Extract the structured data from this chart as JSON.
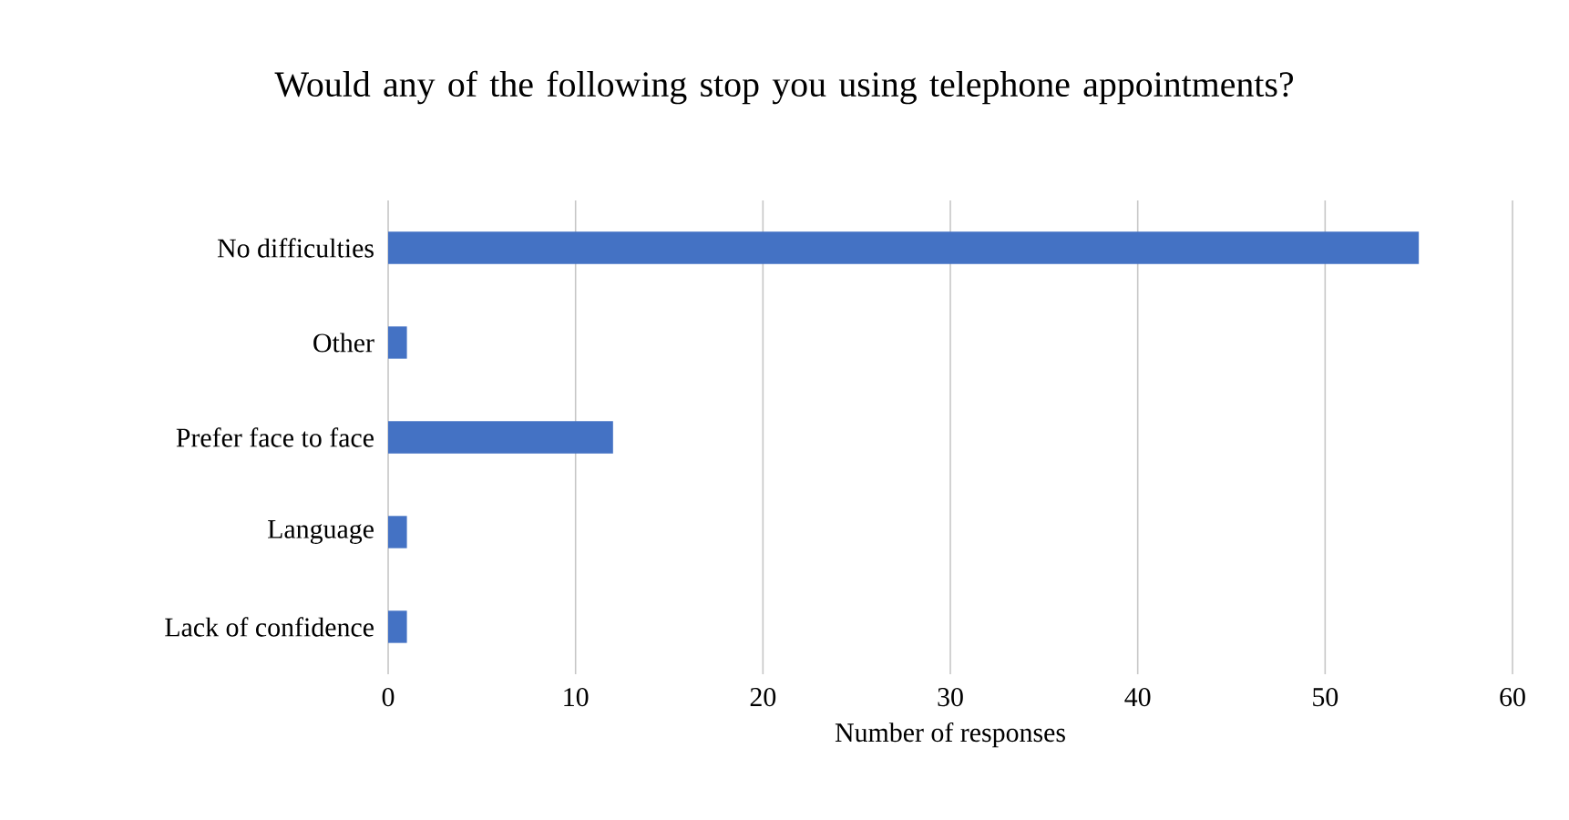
{
  "chart_data": {
    "type": "bar",
    "orientation": "horizontal",
    "title": "Would any of the following stop you using telephone appointments?",
    "xlabel": "Number of responses",
    "categories": [
      "No difficulties",
      "Other",
      "Prefer face to face",
      "Language",
      "Lack of confidence"
    ],
    "values": [
      55,
      1,
      12,
      1,
      1
    ],
    "color": "#4472c4",
    "xlim": [
      0,
      60
    ],
    "xticks": [
      0,
      10,
      20,
      30,
      40,
      50,
      60
    ],
    "grid": "x"
  }
}
